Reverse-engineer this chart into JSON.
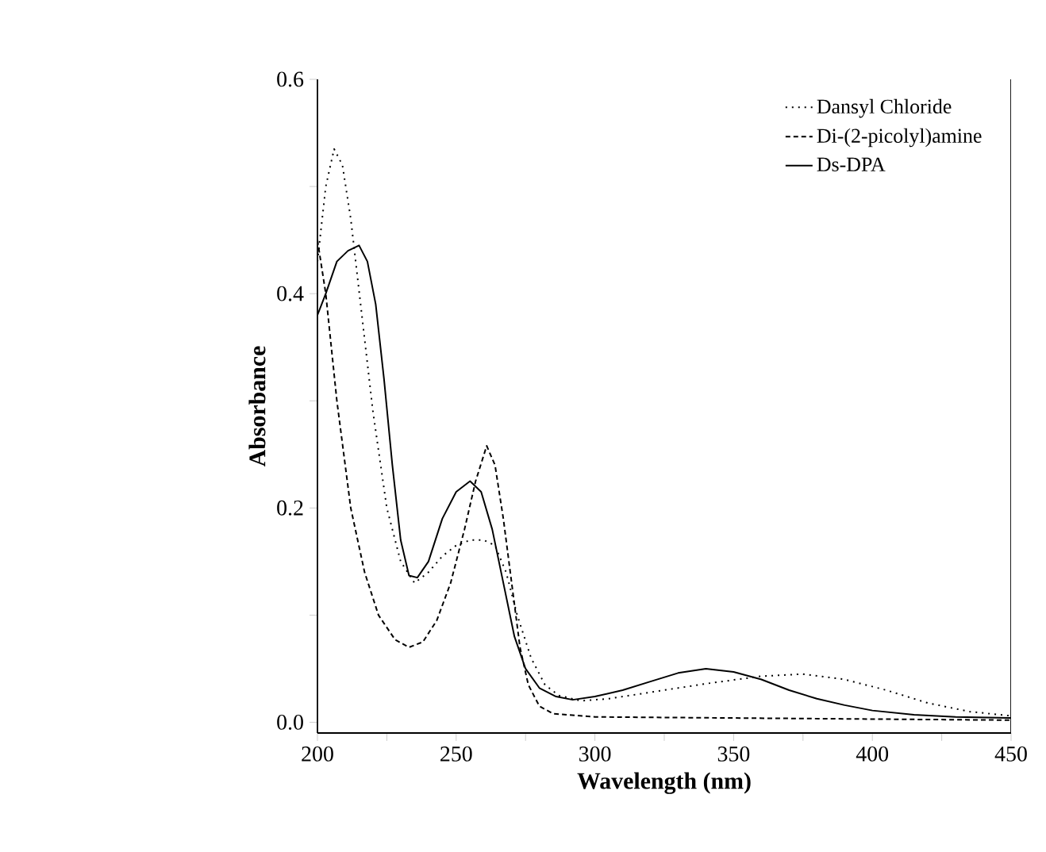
{
  "chart_data": {
    "type": "line",
    "xlabel": "Wavelength (nm)",
    "ylabel": "Absorbance",
    "xlim": [
      200,
      450
    ],
    "ylim": [
      -0.01,
      0.6
    ],
    "xticks": [
      200,
      {
        "value": 225,
        "label": null
      },
      250,
      {
        "value": 275,
        "label": null
      },
      300,
      {
        "value": 325,
        "label": null
      },
      350,
      {
        "value": 375,
        "label": null
      },
      400,
      {
        "value": 425,
        "label": null
      },
      450
    ],
    "yticks": [
      {
        "value": 0,
        "label": "0.0"
      },
      {
        "value": 0.1,
        "label": null
      },
      0.2,
      {
        "value": 0.3,
        "label": null
      },
      0.4,
      {
        "value": 0.5,
        "label": null
      },
      0.6
    ],
    "legend": "top right",
    "grid": false,
    "marker": "none",
    "series": [
      {
        "name": "Dansyl Chloride",
        "color": "#000000",
        "line_style": "dotted",
        "x": [
          200,
          203,
          206,
          209,
          212,
          216,
          220,
          225,
          230,
          235,
          240,
          245,
          250,
          255,
          260,
          264,
          268,
          272,
          277,
          282,
          287,
          295,
          305,
          320,
          340,
          360,
          375,
          390,
          405,
          420,
          435,
          450
        ],
        "values": [
          0.43,
          0.5,
          0.535,
          0.52,
          0.47,
          0.38,
          0.29,
          0.2,
          0.15,
          0.13,
          0.14,
          0.155,
          0.165,
          0.17,
          0.17,
          0.165,
          0.14,
          0.1,
          0.06,
          0.035,
          0.025,
          0.02,
          0.022,
          0.028,
          0.036,
          0.043,
          0.045,
          0.04,
          0.03,
          0.018,
          0.01,
          0.006
        ]
      },
      {
        "name": "Di-(2-picolyl)amine",
        "color": "#000000",
        "line_style": "dashed",
        "x": [
          200,
          203,
          207,
          212,
          217,
          222,
          228,
          233,
          238,
          243,
          248,
          253,
          257,
          261,
          264,
          267,
          270,
          273,
          276,
          280,
          285,
          300,
          350,
          400,
          450
        ],
        "values": [
          0.45,
          0.4,
          0.3,
          0.2,
          0.14,
          0.1,
          0.077,
          0.07,
          0.075,
          0.095,
          0.13,
          0.18,
          0.225,
          0.258,
          0.24,
          0.19,
          0.13,
          0.07,
          0.035,
          0.015,
          0.008,
          0.005,
          0.004,
          0.003,
          0.002
        ]
      },
      {
        "name": "Ds-DPA",
        "color": "#000000",
        "line_style": "solid",
        "x": [
          200,
          203,
          207,
          211,
          215,
          218,
          221,
          224,
          227,
          230,
          233,
          236,
          240,
          245,
          250,
          255,
          259,
          263,
          267,
          271,
          275,
          280,
          286,
          292,
          300,
          310,
          320,
          330,
          340,
          350,
          360,
          370,
          380,
          390,
          400,
          415,
          430,
          450
        ],
        "values": [
          0.38,
          0.4,
          0.43,
          0.44,
          0.445,
          0.43,
          0.39,
          0.32,
          0.24,
          0.17,
          0.137,
          0.135,
          0.15,
          0.19,
          0.215,
          0.225,
          0.215,
          0.18,
          0.13,
          0.08,
          0.05,
          0.032,
          0.024,
          0.021,
          0.024,
          0.03,
          0.038,
          0.046,
          0.05,
          0.047,
          0.04,
          0.03,
          0.022,
          0.016,
          0.011,
          0.007,
          0.005,
          0.004
        ]
      }
    ]
  }
}
